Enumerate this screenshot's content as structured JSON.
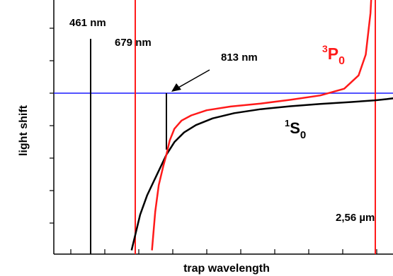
{
  "chart_data": {
    "type": "line",
    "title": "",
    "xlabel": "trap wavelength",
    "ylabel": "light shift",
    "grid": false,
    "colors": {
      "frame": "#000000",
      "zero_line": "#1a1aff",
      "ground": "#000000",
      "excited": "#ff1a1a"
    },
    "vertical_markers": [
      {
        "label": "461 nm",
        "x": 461,
        "color": "#000000"
      },
      {
        "label": "679 nm",
        "x": 679,
        "color": "#ff1a1a"
      },
      {
        "label": "813 nm",
        "x": 813,
        "color": "#000000"
      },
      {
        "label": "2,56 µm",
        "x": 2560,
        "color": "#ff1a1a"
      }
    ],
    "series": [
      {
        "name": "1S0",
        "color": "#000000",
        "x": [
          661,
          700,
          730,
          760,
          813,
          880,
          960,
          1060,
          1200,
          1380,
          1600,
          1850,
          2100,
          2350,
          2560,
          2800,
          2950
        ],
        "y": [
          -10.6,
          -8.2,
          -6.9,
          -5.9,
          -4.15,
          -3.3,
          -2.65,
          -2.15,
          -1.7,
          -1.35,
          -1.08,
          -0.88,
          -0.73,
          -0.6,
          -0.48,
          -0.4,
          -0.34
        ]
      },
      {
        "name": "3P0",
        "color": "#ff1a1a",
        "x": [
          751,
          765,
          780,
          800,
          813,
          840,
          880,
          940,
          1020,
          1150,
          1350,
          1600,
          1850,
          2100,
          2300,
          2420,
          2480,
          2520,
          2540,
          2550
        ],
        "y": [
          -10.6,
          -8.0,
          -6.2,
          -4.9,
          -4.15,
          -3.2,
          -2.4,
          -1.85,
          -1.5,
          -1.15,
          -0.9,
          -0.7,
          -0.45,
          -0.15,
          0.3,
          1.2,
          2.6,
          5.4,
          8.5,
          10.4
        ]
      }
    ],
    "annotations": {
      "s_sup": "1",
      "s_main": "S",
      "s_sub": "0",
      "p_sup": "3",
      "p_main": "P",
      "p_sub": "0"
    }
  }
}
